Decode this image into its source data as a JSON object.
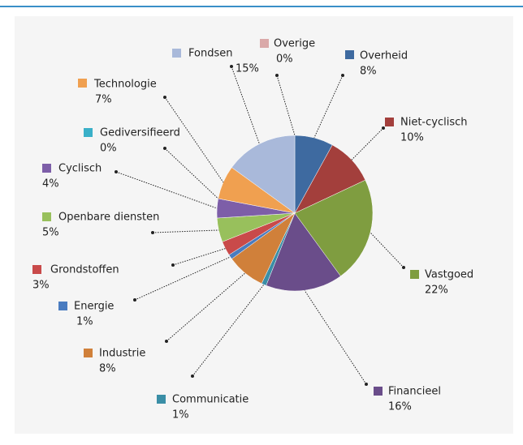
{
  "chart_data": {
    "type": "pie",
    "categories": [
      "Overheid",
      "Niet-cyclisch",
      "Vastgoed",
      "Financieel",
      "Communicatie",
      "Industrie",
      "Energie",
      "Grondstoffen",
      "Openbare diensten",
      "Cyclisch",
      "Gediversifieerd",
      "Technologie",
      "Fondsen",
      "Overige"
    ],
    "values": [
      8,
      10,
      22,
      16,
      1,
      8,
      1,
      3,
      5,
      4,
      0,
      7,
      15,
      0
    ],
    "value_labels": [
      "8%",
      "10%",
      "22%",
      "16%",
      "1%",
      "8%",
      "1%",
      "3%",
      "5%",
      "4%",
      "0%",
      "7%",
      "15%",
      "0%"
    ],
    "colors": [
      "#3e6aa0",
      "#a33f3c",
      "#7f9d40",
      "#6a4d8a",
      "#3a8ea6",
      "#d0803a",
      "#4a7cc0",
      "#c94a4a",
      "#98c05c",
      "#7d5ea8",
      "#3ab0c8",
      "#f0a050",
      "#a9b9da",
      "#daa9a9"
    ]
  }
}
